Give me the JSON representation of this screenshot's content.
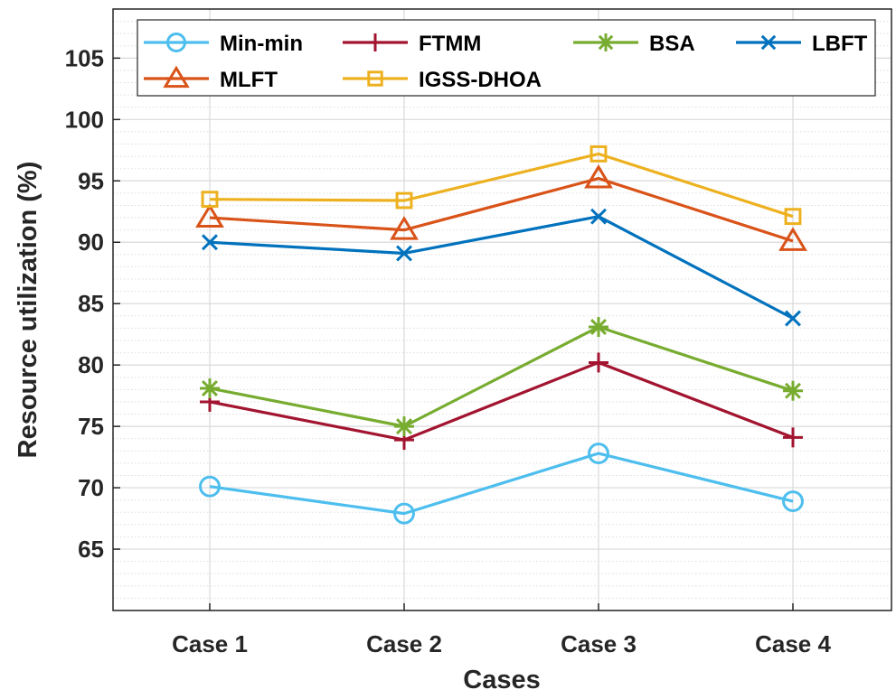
{
  "chart_data": {
    "type": "line",
    "title": "",
    "xlabel": "Cases",
    "ylabel": "Resource utilization (%)",
    "categories": [
      "Case 1",
      "Case 2",
      "Case 3",
      "Case 4"
    ],
    "ylim": [
      60,
      109
    ],
    "yticks": [
      65,
      70,
      75,
      80,
      85,
      90,
      95,
      100,
      105
    ],
    "grid": true,
    "legend_position": "top",
    "series": [
      {
        "name": "Min-min",
        "marker": "circle",
        "color": "#4DBEEE",
        "values": [
          70.1,
          67.9,
          72.8,
          68.9
        ]
      },
      {
        "name": "FTMM",
        "marker": "plus",
        "color": "#A2142F",
        "values": [
          77.0,
          73.9,
          80.2,
          74.1
        ]
      },
      {
        "name": "BSA",
        "marker": "asterisk",
        "color": "#77AC30",
        "values": [
          78.1,
          75.0,
          83.1,
          77.9
        ]
      },
      {
        "name": "LBFT",
        "marker": "x",
        "color": "#0072BD",
        "values": [
          90.0,
          89.1,
          92.1,
          83.8
        ]
      },
      {
        "name": "MLFT",
        "marker": "triangle",
        "color": "#D95319",
        "values": [
          92.0,
          91.0,
          95.2,
          90.1
        ]
      },
      {
        "name": "IGSS-DHOA",
        "marker": "square",
        "color": "#EDB120",
        "values": [
          93.5,
          93.4,
          97.2,
          92.1
        ]
      }
    ]
  }
}
